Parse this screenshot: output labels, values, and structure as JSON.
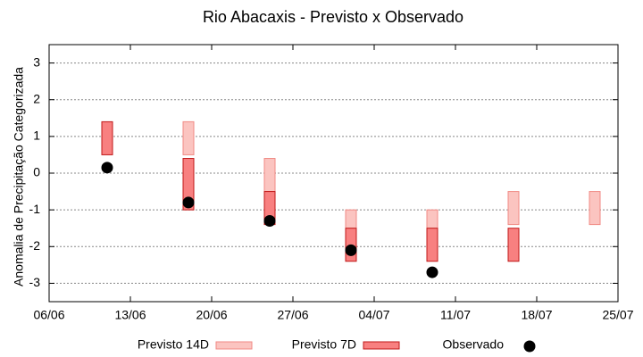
{
  "chart_data": {
    "type": "range-box",
    "title": "Rio Abacaxis - Previsto x Observado",
    "y_label": "Anomalia de Precipitação Categorizada",
    "x": [
      "11/06",
      "18/06",
      "25/06",
      "02/07",
      "09/07",
      "16/07",
      "23/07"
    ],
    "xlim": [
      "06/06",
      "25/07"
    ],
    "xticks": [
      "06/06",
      "13/06",
      "20/06",
      "27/06",
      "04/07",
      "11/07",
      "18/07",
      "25/07"
    ],
    "ylim": [
      -3.5,
      3.5
    ],
    "yticks": [
      -3,
      -2,
      -1,
      0,
      1,
      2,
      3
    ],
    "grid": true,
    "series": [
      {
        "name": "Previsto 14D",
        "color": "#fbc4c0",
        "edge": "#f08a84",
        "low": [
          null,
          0.5,
          -0.5,
          -1.5,
          -1.5,
          -1.4,
          -1.4
        ],
        "high": [
          null,
          1.4,
          0.4,
          -1.0,
          -1.0,
          -0.5,
          -0.5
        ]
      },
      {
        "name": "Previsto 7D",
        "color": "#f88080",
        "edge": "#c01818",
        "low": [
          0.5,
          -1.0,
          -1.4,
          -2.4,
          -2.4,
          -2.4,
          null
        ],
        "high": [
          1.4,
          0.4,
          -0.5,
          -1.5,
          -1.5,
          -1.5,
          null
        ]
      },
      {
        "name": "Observado",
        "color": "#000000",
        "values": [
          0.15,
          -0.8,
          -1.3,
          -2.1,
          -2.7,
          null,
          null
        ]
      }
    ]
  }
}
